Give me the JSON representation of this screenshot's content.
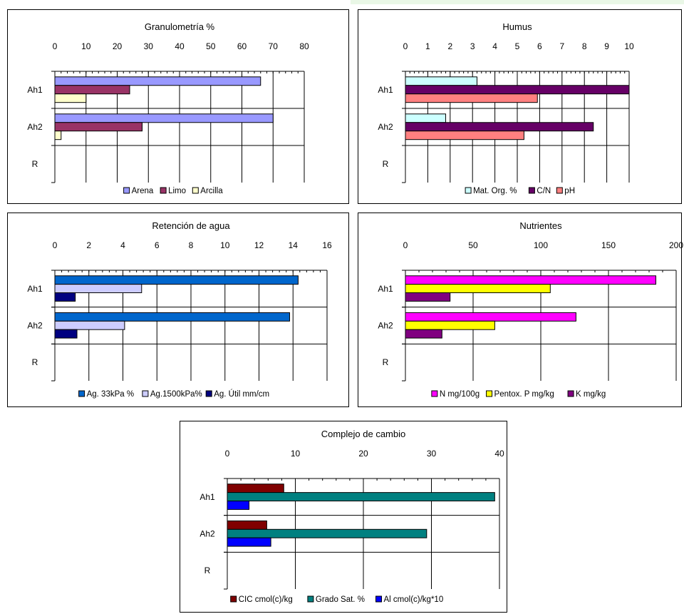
{
  "chart_data": [
    {
      "type": "bar",
      "title": "Granulometría %",
      "categories": [
        "Ah1",
        "Ah2",
        "R"
      ],
      "xlim": [
        0,
        80
      ],
      "xticks": [
        "0",
        "10",
        "20",
        "30",
        "40",
        "50",
        "60",
        "70",
        "80"
      ],
      "series": [
        {
          "name": "Arena",
          "color": "#9999ff",
          "values": [
            66,
            70,
            0
          ]
        },
        {
          "name": "Limo",
          "color": "#993366",
          "values": [
            24,
            28,
            0
          ]
        },
        {
          "name": "Arcilla",
          "color": "#ffffcc",
          "values": [
            10,
            2,
            0
          ]
        }
      ],
      "legend": "bottom"
    },
    {
      "type": "bar",
      "title": "Humus",
      "categories": [
        "Ah1",
        "Ah2",
        "R"
      ],
      "xlim": [
        0,
        10
      ],
      "xticks": [
        "0",
        "1",
        "2",
        "3",
        "4",
        "5",
        "6",
        "7",
        "8",
        "9",
        "10"
      ],
      "series": [
        {
          "name": "Mat. Org. %",
          "color": "#ccffff",
          "values": [
            3.2,
            1.8,
            0
          ]
        },
        {
          "name": "C/N",
          "color": "#660066",
          "values": [
            10,
            8.4,
            0
          ]
        },
        {
          "name": "pH",
          "color": "#ff8080",
          "values": [
            5.9,
            5.3,
            0
          ]
        }
      ],
      "legend": "bottom"
    },
    {
      "type": "bar",
      "title": "Retención de agua",
      "categories": [
        "Ah1",
        "Ah2",
        "R"
      ],
      "xlim": [
        0,
        16
      ],
      "xticks": [
        "0",
        "2",
        "4",
        "6",
        "8",
        "10",
        "12",
        "14",
        "16"
      ],
      "series": [
        {
          "name": "Ag. 33kPa %",
          "color": "#0066cc",
          "values": [
            14.3,
            13.8,
            0
          ]
        },
        {
          "name": "Ag.1500kPa%",
          "color": "#ccccff",
          "values": [
            5.1,
            4.1,
            0
          ]
        },
        {
          "name": "Ag. Útil mm/cm",
          "color": "#000080",
          "values": [
            1.2,
            1.3,
            0
          ]
        }
      ],
      "legend": "bottom"
    },
    {
      "type": "bar",
      "title": "Nutrientes",
      "categories": [
        "Ah1",
        "Ah2",
        "R"
      ],
      "xlim": [
        0,
        200
      ],
      "xticks": [
        "0",
        "50",
        "100",
        "150",
        "200"
      ],
      "series": [
        {
          "name": "N mg/100g",
          "color": "#ff00ff",
          "values": [
            185,
            126,
            0
          ]
        },
        {
          "name": "Pentox. P mg/kg",
          "color": "#ffff00",
          "values": [
            107,
            66,
            0
          ]
        },
        {
          "name": "K mg/kg",
          "color": "#800080",
          "values": [
            33,
            27,
            0
          ]
        }
      ],
      "legend": "bottom"
    },
    {
      "type": "bar",
      "title": "Complejo de cambio",
      "categories": [
        "Ah1",
        "Ah2",
        "R"
      ],
      "xlim": [
        0,
        40
      ],
      "xticks": [
        "0",
        "10",
        "20",
        "30",
        "40"
      ],
      "series": [
        {
          "name": "CIC cmol(c)/kg",
          "color": "#800000",
          "values": [
            8.3,
            5.8,
            0
          ]
        },
        {
          "name": "Grado Sat. %",
          "color": "#008080",
          "values": [
            39.3,
            29.3,
            0
          ]
        },
        {
          "name": "Al cmol(c)/kg*10",
          "color": "#0000ff",
          "values": [
            3.2,
            6.4,
            0
          ]
        }
      ],
      "legend": "bottom"
    }
  ]
}
